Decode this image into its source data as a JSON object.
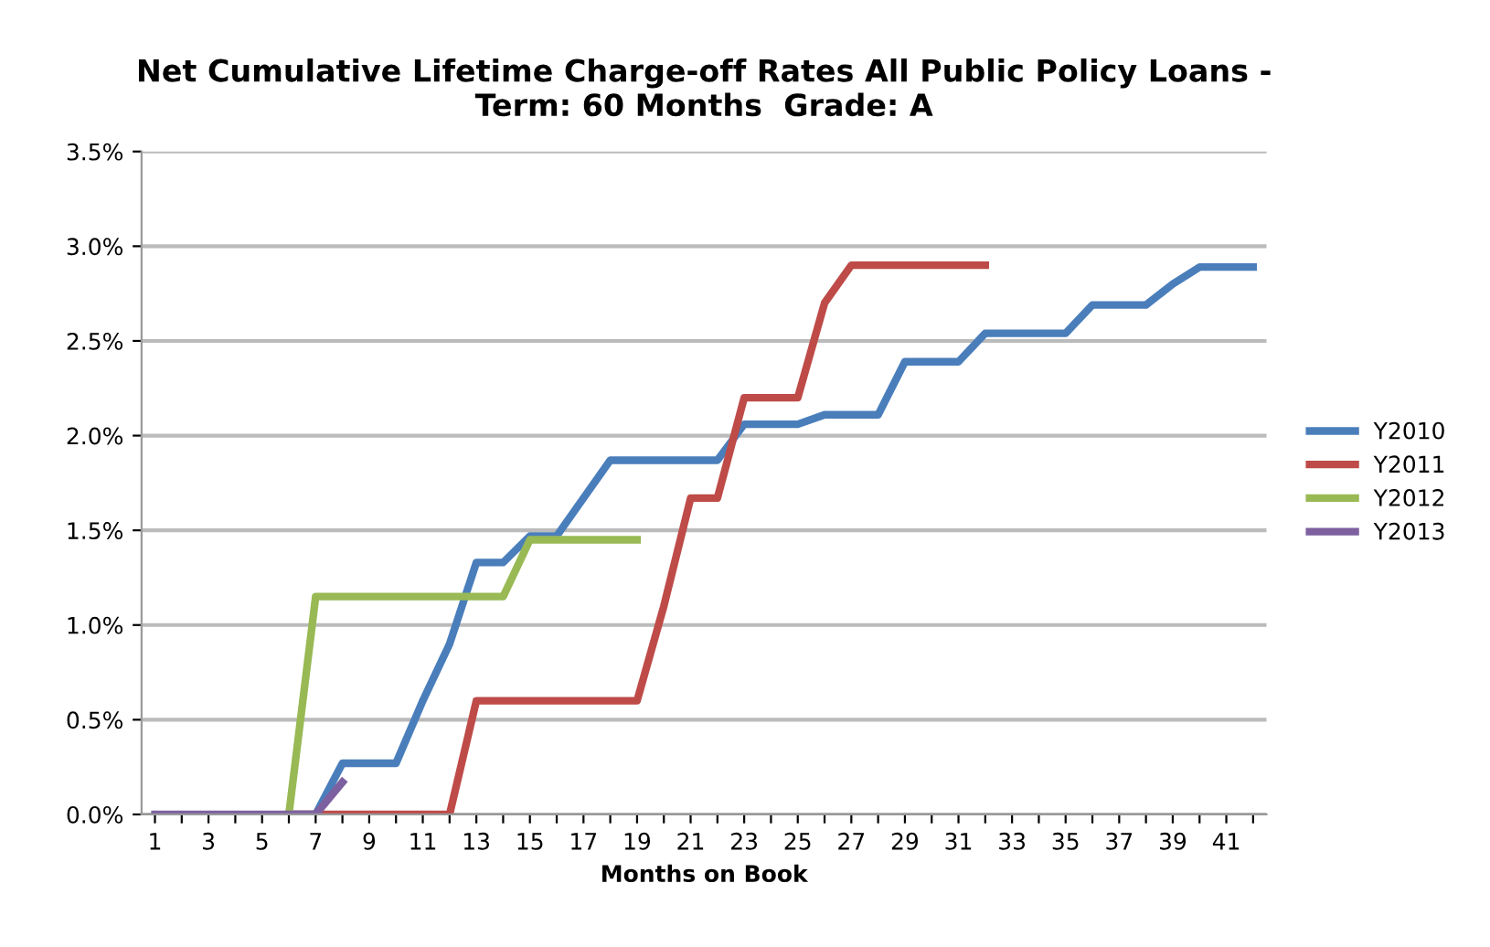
{
  "chart_data": {
    "type": "line",
    "title": "Net Cumulative Lifetime Charge-off Rates All Public Policy Loans -\nTerm: 60 Months  Grade: A",
    "xlabel": "Months on Book",
    "categories": [
      "1",
      null,
      "3",
      null,
      "5",
      null,
      "7",
      null,
      "9",
      null,
      "11",
      null,
      "13",
      null,
      "15",
      null,
      "17",
      null,
      "19",
      null,
      "21",
      null,
      "23",
      null,
      "25",
      null,
      "27",
      null,
      "29",
      null,
      "31",
      null,
      "33",
      null,
      "35",
      null,
      "37",
      null,
      "39",
      null,
      "41",
      null
    ],
    "series": [
      {
        "name": "Y2010",
        "color": "#4a7ebb",
        "values": [
          null,
          null,
          null,
          null,
          null,
          0,
          0,
          0.27,
          0.27,
          0.27,
          0.6,
          0.9,
          1.33,
          1.33,
          1.47,
          1.47,
          1.67,
          1.87,
          1.87,
          1.87,
          1.87,
          1.87,
          2.06,
          2.06,
          2.06,
          2.11,
          2.11,
          2.11,
          2.39,
          2.39,
          2.39,
          2.54,
          2.54,
          2.54,
          2.54,
          2.69,
          2.69,
          2.69,
          2.8,
          2.89,
          2.89,
          2.89
        ]
      },
      {
        "name": "Y2011",
        "color": "#be4b48",
        "values": [
          null,
          null,
          null,
          null,
          null,
          0,
          0,
          0,
          0,
          0,
          0,
          0,
          0.6,
          0.6,
          0.6,
          0.6,
          0.6,
          0.6,
          0.6,
          1.1,
          1.67,
          1.67,
          2.2,
          2.2,
          2.2,
          2.7,
          2.9,
          2.9,
          2.9,
          2.9,
          2.9,
          2.9,
          null,
          null,
          null,
          null,
          null,
          null,
          null,
          null,
          null,
          null
        ]
      },
      {
        "name": "Y2012",
        "color": "#98b954",
        "values": [
          null,
          null,
          null,
          null,
          null,
          0,
          1.15,
          1.15,
          1.15,
          1.15,
          1.15,
          1.15,
          1.15,
          1.15,
          1.45,
          1.45,
          1.45,
          1.45,
          1.45,
          null,
          null,
          null,
          null,
          null,
          null,
          null,
          null,
          null,
          null,
          null,
          null,
          null,
          null,
          null,
          null,
          null,
          null,
          null,
          null,
          null,
          null,
          null
        ]
      },
      {
        "name": "Y2013",
        "color": "#7d60a0",
        "values": [
          0,
          0,
          0,
          0,
          0,
          0,
          0,
          0.17,
          null,
          null,
          null,
          null,
          null,
          null,
          null,
          null,
          null,
          null,
          null,
          null,
          null,
          null,
          null,
          null,
          null,
          null,
          null,
          null,
          null,
          null,
          null,
          null,
          null,
          null,
          null,
          null,
          null,
          null,
          null,
          null,
          null,
          null
        ]
      }
    ],
    "ylim": [
      0,
      3.5
    ],
    "yticks": [
      {
        "value": 0,
        "label": "0.0%"
      },
      {
        "value": 0.5,
        "label": "0.5%"
      },
      {
        "value": 1,
        "label": "1.0%"
      },
      {
        "value": 1.5,
        "label": "1.5%"
      },
      {
        "value": 2,
        "label": "2.0%"
      },
      {
        "value": 2.5,
        "label": "2.5%"
      },
      {
        "value": 3,
        "label": "3.0%"
      },
      {
        "value": 3.5,
        "label": "3.5%"
      }
    ],
    "grid": "y",
    "legend": "right",
    "marker": "none",
    "line_style": "solid"
  }
}
